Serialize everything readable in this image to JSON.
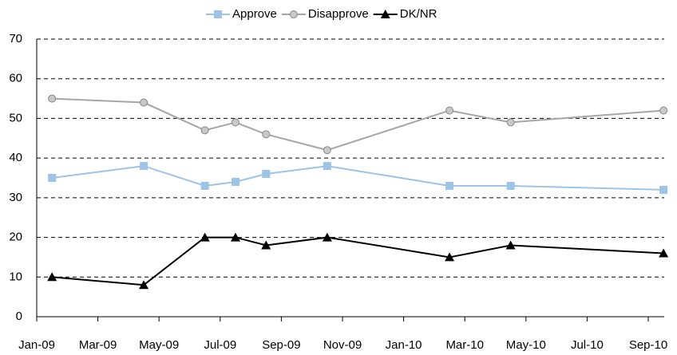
{
  "chart_data": {
    "type": "line",
    "x": [
      "2009-01",
      "2009-04",
      "2009-06",
      "2009-07",
      "2009-08",
      "2009-10",
      "2010-02",
      "2010-04",
      "2010-09"
    ],
    "series": [
      {
        "name": "Approve",
        "color": "#9dc3e6",
        "marker": "square",
        "values": [
          35,
          38,
          33,
          34,
          36,
          38,
          33,
          33,
          32
        ]
      },
      {
        "name": "Disapprove",
        "color": "#a6a6a6",
        "marker": "circle",
        "values": [
          55,
          54,
          47,
          49,
          46,
          42,
          52,
          49,
          52
        ]
      },
      {
        "name": "DK/NR",
        "color": "#000000",
        "marker": "triangle",
        "values": [
          10,
          8,
          20,
          20,
          18,
          20,
          15,
          18,
          16
        ]
      }
    ],
    "xlim": [
      "2009-01",
      "2010-09"
    ],
    "xticks": [
      {
        "value": "2009-01",
        "label": "Jan-09"
      },
      {
        "value": "2009-03",
        "label": "Mar-09"
      },
      {
        "value": "2009-05",
        "label": "May-09"
      },
      {
        "value": "2009-07",
        "label": "Jul-09"
      },
      {
        "value": "2009-09",
        "label": "Sep-09"
      },
      {
        "value": "2009-11",
        "label": "Nov-09"
      },
      {
        "value": "2010-01",
        "label": "Jan-10"
      },
      {
        "value": "2010-03",
        "label": "Mar-10"
      },
      {
        "value": "2010-05",
        "label": "May-10"
      },
      {
        "value": "2010-07",
        "label": "Jul-10"
      },
      {
        "value": "2010-09",
        "label": "Sep-10"
      }
    ],
    "ylim": [
      0,
      70
    ],
    "yticks": [
      0,
      10,
      20,
      30,
      40,
      50,
      60,
      70
    ],
    "grid": true,
    "legend": "top"
  }
}
